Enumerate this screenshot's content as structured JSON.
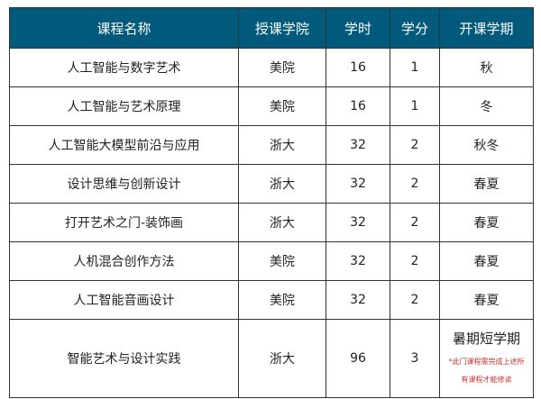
{
  "headers": [
    "课程名称",
    "授课学院",
    "学时",
    "学分",
    "开课学期"
  ],
  "rows": [
    [
      "人工智能与数字艺术",
      "美院",
      "16",
      "1",
      "秋"
    ],
    [
      "人工智能与艺术原理",
      "美院",
      "16",
      "1",
      "冬"
    ],
    [
      "人工智能大模型前沿与应用",
      "浙大",
      "32",
      "2",
      "秋冬"
    ],
    [
      "设计思维与创新设计",
      "浙大",
      "32",
      "2",
      "春夏"
    ],
    [
      "打开艺术之门-装饰画",
      "浙大",
      "32",
      "2",
      "春夏"
    ],
    [
      "人机混合创作方法",
      "美院",
      "32",
      "2",
      "春夏"
    ],
    [
      "人工智能音画设计",
      "美院",
      "32",
      "2",
      "春夏"
    ],
    [
      "智能艺术与设计实践",
      "浙大",
      "96",
      "3",
      "暑期短学期"
    ]
  ],
  "note": "*此门课程需完成上述所有课程才能修读",
  "colors": {
    "header_bg": "#015a7c",
    "note": "#d03030"
  }
}
